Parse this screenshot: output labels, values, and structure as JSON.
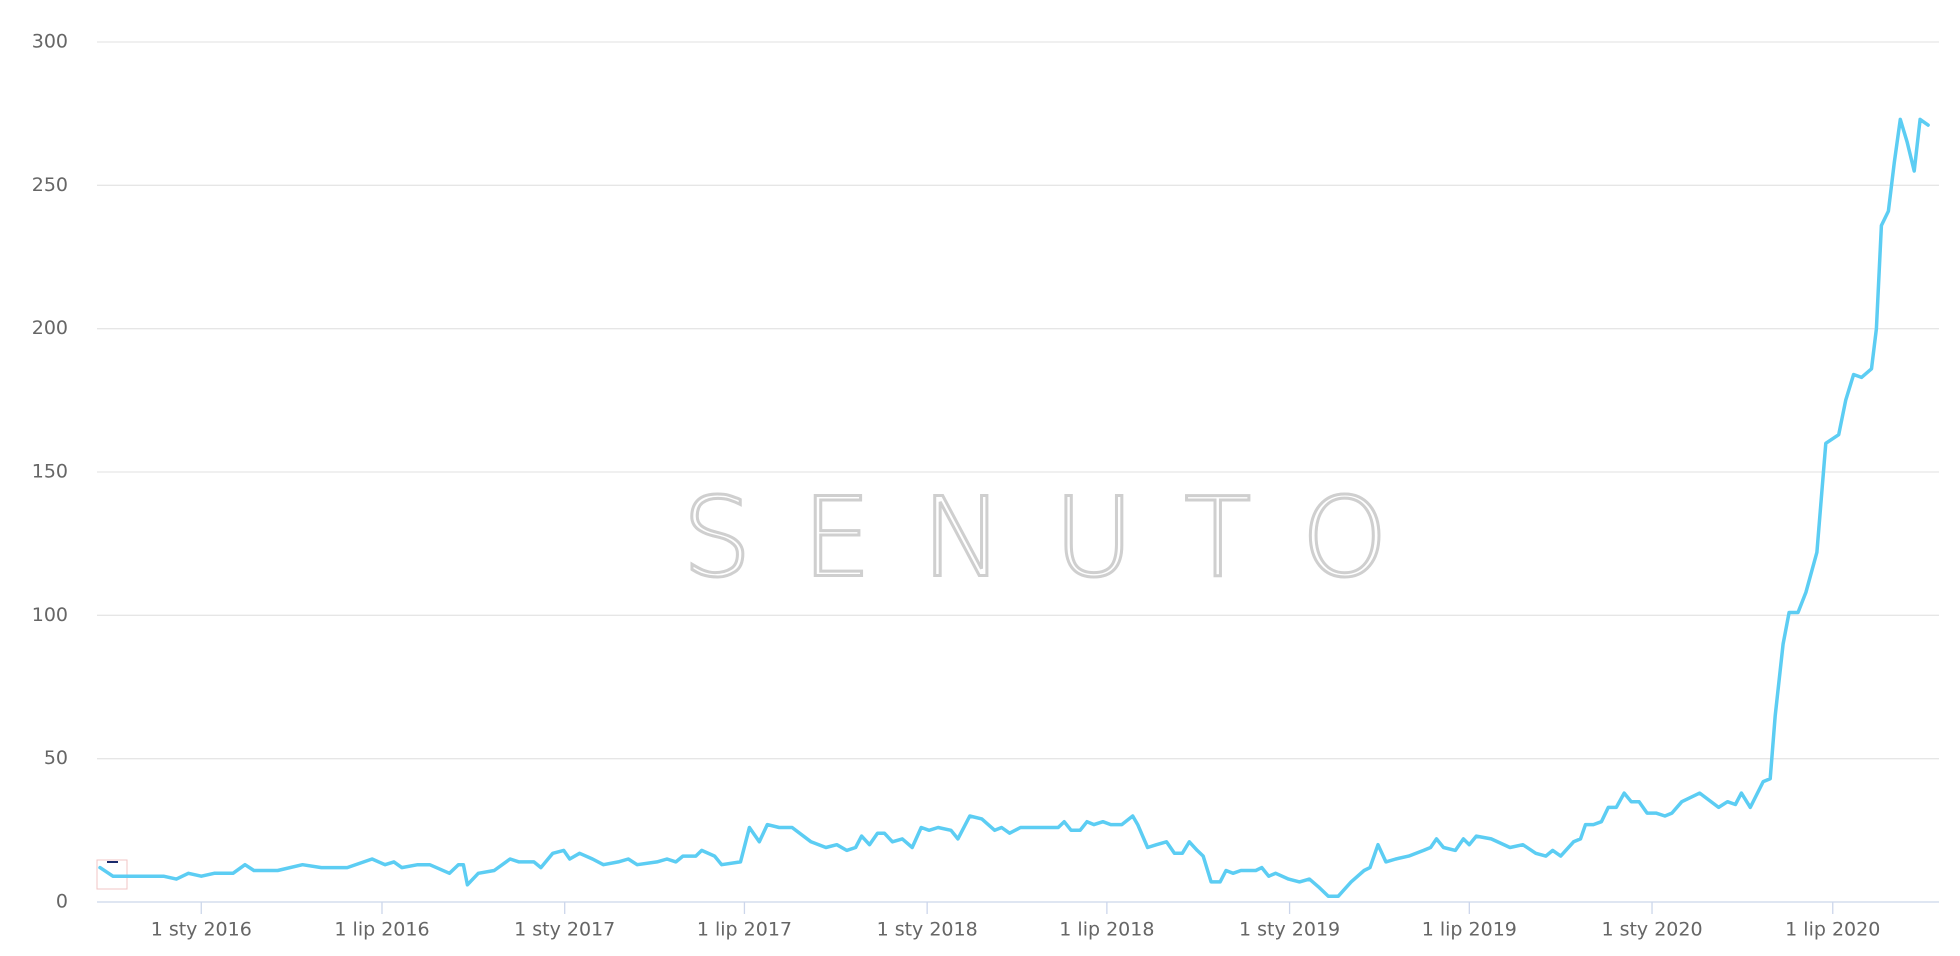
{
  "chart_data": {
    "type": "line",
    "watermark": "SENUTO",
    "x": [
      "2015-09-21",
      "2015-10-04",
      "2015-10-30",
      "2015-11-24",
      "2015-12-07",
      "2015-12-19",
      "2016-01-01",
      "2016-01-14",
      "2016-02-02",
      "2016-02-14",
      "2016-02-23",
      "2016-03-18",
      "2016-04-12",
      "2016-05-01",
      "2016-05-27",
      "2016-06-21",
      "2016-07-04",
      "2016-07-13",
      "2016-07-21",
      "2016-08-06",
      "2016-08-18",
      "2016-09-07",
      "2016-09-16",
      "2016-09-21",
      "2016-09-25",
      "2016-10-06",
      "2016-10-22",
      "2016-11-07",
      "2016-11-16",
      "2016-12-01",
      "2016-12-08",
      "2016-12-20",
      "2016-12-31",
      "2017-01-06",
      "2017-01-16",
      "2017-01-29",
      "2017-02-09",
      "2017-02-24",
      "2017-03-06",
      "2017-03-15",
      "2017-04-04",
      "2017-04-14",
      "2017-04-23",
      "2017-04-30",
      "2017-05-13",
      "2017-05-19",
      "2017-06-01",
      "2017-06-08",
      "2017-06-27",
      "2017-07-06",
      "2017-07-16",
      "2017-07-24",
      "2017-08-05",
      "2017-08-18",
      "2017-09-06",
      "2017-09-21",
      "2017-10-02",
      "2017-10-12",
      "2017-10-21",
      "2017-10-27",
      "2017-11-04",
      "2017-11-12",
      "2017-11-19",
      "2017-11-27",
      "2017-12-07",
      "2017-12-17",
      "2017-12-26",
      "2018-01-03",
      "2018-01-12",
      "2018-01-25",
      "2018-02-01",
      "2018-02-13",
      "2018-02-25",
      "2018-03-10",
      "2018-03-17",
      "2018-03-25",
      "2018-04-05",
      "2018-05-13",
      "2018-05-19",
      "2018-05-26",
      "2018-06-04",
      "2018-06-11",
      "2018-06-18",
      "2018-06-27",
      "2018-07-05",
      "2018-07-16",
      "2018-07-27",
      "2018-08-01",
      "2018-08-11",
      "2018-08-20",
      "2018-08-30",
      "2018-09-07",
      "2018-09-15",
      "2018-09-22",
      "2018-09-30",
      "2018-10-06",
      "2018-10-14",
      "2018-10-23",
      "2018-10-29",
      "2018-11-05",
      "2018-11-13",
      "2018-11-28",
      "2018-12-04",
      "2018-12-11",
      "2018-12-18",
      "2018-12-31",
      "2019-01-11",
      "2019-01-21",
      "2019-01-31",
      "2019-02-09",
      "2019-02-19",
      "2019-03-04",
      "2019-03-17",
      "2019-03-23",
      "2019-03-31",
      "2019-04-08",
      "2019-04-18",
      "2019-05-01",
      "2019-05-16",
      "2019-05-23",
      "2019-05-29",
      "2019-06-05",
      "2019-06-17",
      "2019-06-25",
      "2019-07-01",
      "2019-07-08",
      "2019-07-23",
      "2019-08-11",
      "2019-08-24",
      "2019-09-06",
      "2019-09-16",
      "2019-09-23",
      "2019-10-01",
      "2019-10-14",
      "2019-10-21",
      "2019-10-26",
      "2019-11-03",
      "2019-11-11",
      "2019-11-18",
      "2019-11-26",
      "2019-12-04",
      "2019-12-11",
      "2019-12-19",
      "2019-12-27",
      "2020-01-05",
      "2020-01-14",
      "2020-01-21",
      "2020-01-31",
      "2020-02-18",
      "2020-03-08",
      "2020-03-17",
      "2020-03-25",
      "2020-03-31",
      "2020-04-09",
      "2020-04-22",
      "2020-04-29",
      "2020-05-04",
      "2020-05-12",
      "2020-05-18",
      "2020-05-27",
      "2020-06-04",
      "2020-06-15",
      "2020-06-24",
      "2020-07-07",
      "2020-07-14",
      "2020-07-22",
      "2020-07-30",
      "2020-08-09",
      "2020-08-14",
      "2020-08-19",
      "2020-08-26",
      "2020-09-01",
      "2020-09-07",
      "2020-09-14",
      "2020-09-21",
      "2020-09-27",
      "2020-10-05"
    ],
    "series": [
      {
        "color": "#5ccdf3",
        "values": [
          12,
          9,
          9,
          9,
          8,
          10,
          9,
          10,
          10,
          13,
          11,
          11,
          13,
          12,
          12,
          15,
          13,
          14,
          12,
          13,
          13,
          10,
          13,
          13,
          6,
          10,
          11,
          15,
          14,
          14,
          12,
          17,
          18,
          15,
          17,
          15,
          13,
          14,
          15,
          13,
          14,
          15,
          14,
          16,
          16,
          18,
          16,
          13,
          14,
          26,
          21,
          27,
          26,
          26,
          21,
          19,
          20,
          18,
          19,
          23,
          20,
          24,
          24,
          21,
          22,
          19,
          26,
          25,
          26,
          25,
          22,
          30,
          29,
          25,
          26,
          24,
          26,
          26,
          28,
          25,
          25,
          28,
          27,
          28,
          27,
          27,
          30,
          27,
          19,
          20,
          21,
          17,
          17,
          21,
          18,
          16,
          7,
          7,
          11,
          10,
          11,
          11,
          12,
          9,
          10,
          8,
          7,
          8,
          5,
          2,
          2,
          7,
          11,
          12,
          20,
          14,
          15,
          16,
          18,
          19,
          22,
          19,
          18,
          22,
          20,
          23,
          22,
          19,
          20,
          17,
          16,
          18,
          16,
          21,
          22,
          27,
          27,
          28,
          33,
          33,
          38,
          35,
          35,
          31,
          31,
          30,
          31,
          35,
          38,
          33,
          35,
          34,
          38,
          33,
          42,
          43,
          65,
          90,
          101,
          101,
          108,
          122,
          160,
          163,
          175,
          184,
          183,
          186,
          200,
          236,
          241,
          258,
          273,
          265,
          255,
          273,
          271
        ]
      }
    ],
    "xlim": [
      "2015-09-18",
      "2020-10-16"
    ],
    "xticks": [
      {
        "value": "2016-01-01",
        "label": "1 sty 2016"
      },
      {
        "value": "2016-07-01",
        "label": "1 lip 2016"
      },
      {
        "value": "2017-01-01",
        "label": "1 sty 2017"
      },
      {
        "value": "2017-07-01",
        "label": "1 lip 2017"
      },
      {
        "value": "2018-01-01",
        "label": "1 sty 2018"
      },
      {
        "value": "2018-07-01",
        "label": "1 lip 2018"
      },
      {
        "value": "2019-01-01",
        "label": "1 sty 2019"
      },
      {
        "value": "2019-07-01",
        "label": "1 lip 2019"
      },
      {
        "value": "2020-01-01",
        "label": "1 sty 2020"
      },
      {
        "value": "2020-07-01",
        "label": "1 lip 2020"
      }
    ],
    "ylim": [
      0,
      300
    ],
    "yticks": [
      0,
      50,
      100,
      150,
      200,
      250,
      300
    ],
    "grid": true
  }
}
